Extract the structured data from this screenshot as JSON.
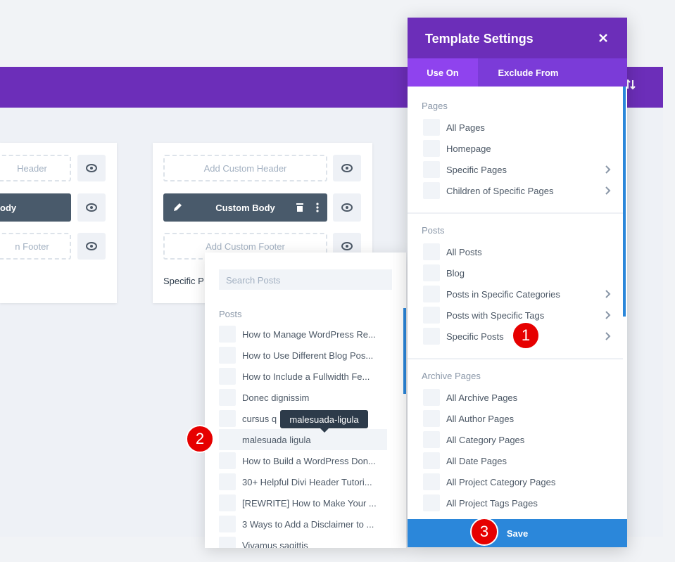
{
  "builder": {
    "left_card": {
      "header": "Header",
      "body": "ody",
      "footer": "n Footer"
    },
    "card": {
      "header": "Add Custom Header",
      "body": "Custom Body",
      "footer": "Add Custom Footer",
      "label": "Specific P"
    }
  },
  "search_popup": {
    "placeholder": "Search Posts",
    "section": "Posts",
    "items": [
      "How to Manage WordPress Re...",
      "How to Use Different Blog Pos...",
      "How to Include a Fullwidth Fe...",
      "Donec dignissim",
      "cursus q",
      "malesuada ligula",
      "How to Build a WordPress Don...",
      "30+ Helpful Divi Header Tutori...",
      "[REWRITE] How to Make Your ...",
      "3 Ways to Add a Disclaimer to ...",
      "Vivamus sagittis"
    ],
    "tooltip": "malesuada-ligula"
  },
  "template_settings": {
    "title": "Template Settings",
    "tabs": [
      "Use On",
      "Exclude From"
    ],
    "sections": [
      {
        "title": "Pages",
        "items": [
          "All Pages",
          "Homepage",
          "Specific Pages",
          "Children of Specific Pages"
        ]
      },
      {
        "title": "Posts",
        "items": [
          "All Posts",
          "Blog",
          "Posts in Specific Categories",
          "Posts with Specific Tags",
          "Specific Posts"
        ]
      },
      {
        "title": "Archive Pages",
        "items": [
          "All Archive Pages",
          "All Author Pages",
          "All Category Pages",
          "All Date Pages",
          "All Project Category Pages",
          "All Project Tags Pages"
        ]
      }
    ],
    "save": "Save"
  },
  "badges": [
    "1",
    "2",
    "3"
  ]
}
